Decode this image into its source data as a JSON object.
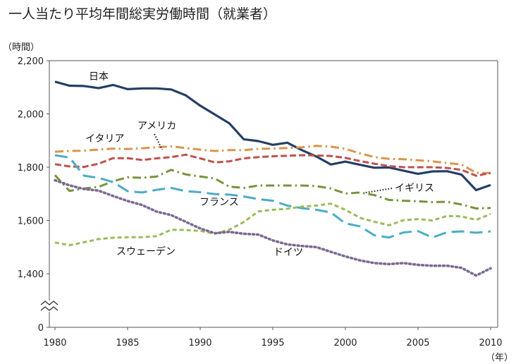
{
  "chart_data": {
    "type": "line",
    "title": "一人当たり平均年間総実労働時間（就業者）",
    "ylabel": "（時間）",
    "xlabel": "（年）",
    "ylim": [
      0,
      2200
    ],
    "axis_break": [
      0,
      1400
    ],
    "y_ticks": [
      0,
      1400,
      1600,
      1800,
      2000,
      2200
    ],
    "y_tick_labels": [
      "0",
      "1,400",
      "1,600",
      "1,800",
      "2,000",
      "2,200"
    ],
    "x_ticks": [
      1980,
      1985,
      1990,
      1995,
      2000,
      2005,
      2010
    ],
    "x_tick_labels": [
      "1980",
      "1985",
      "1990",
      "1995",
      "2000",
      "2005",
      "2010"
    ],
    "grid": false,
    "legend": "inline",
    "x": [
      1980,
      1981,
      1982,
      1983,
      1984,
      1985,
      1986,
      1987,
      1988,
      1989,
      1990,
      1991,
      1992,
      1993,
      1994,
      1995,
      1996,
      1997,
      1998,
      1999,
      2000,
      2001,
      2002,
      2003,
      2004,
      2005,
      2006,
      2007,
      2008,
      2009,
      2010
    ],
    "series": [
      {
        "name": "日本",
        "color": "#243f66",
        "style": "solid",
        "values": [
          2121,
          2106,
          2105,
          2097,
          2109,
          2093,
          2096,
          2096,
          2092,
          2070,
          2031,
          1998,
          1965,
          1905,
          1898,
          1884,
          1892,
          1864,
          1840,
          1810,
          1821,
          1809,
          1798,
          1799,
          1787,
          1775,
          1784,
          1785,
          1772,
          1714,
          1733
        ]
      },
      {
        "name": "アメリカ",
        "color": "#d9954a",
        "style": "dashdot",
        "values": [
          1858,
          1861,
          1862,
          1866,
          1870,
          1868,
          1871,
          1875,
          1878,
          1872,
          1866,
          1861,
          1864,
          1864,
          1869,
          1870,
          1872,
          1875,
          1880,
          1877,
          1869,
          1852,
          1838,
          1831,
          1830,
          1826,
          1822,
          1815,
          1810,
          1779,
          1778
        ]
      },
      {
        "name": "イタリア",
        "color": "#c0504d",
        "style": "dashed",
        "values": [
          1811,
          1803,
          1801,
          1813,
          1834,
          1834,
          1827,
          1833,
          1838,
          1847,
          1833,
          1818,
          1822,
          1833,
          1838,
          1841,
          1843,
          1845,
          1844,
          1842,
          1835,
          1823,
          1813,
          1804,
          1800,
          1800,
          1800,
          1797,
          1790,
          1768,
          1778
        ]
      },
      {
        "name": "イギリス",
        "color": "#77933c",
        "style": "dashdot",
        "values": [
          1770,
          1711,
          1720,
          1726,
          1747,
          1762,
          1760,
          1765,
          1790,
          1773,
          1765,
          1758,
          1727,
          1722,
          1731,
          1731,
          1731,
          1731,
          1729,
          1720,
          1701,
          1705,
          1695,
          1677,
          1674,
          1672,
          1669,
          1670,
          1660,
          1645,
          1647
        ]
      },
      {
        "name": "フランス",
        "color": "#4bacc6",
        "style": "longdash",
        "values": [
          1845,
          1836,
          1768,
          1760,
          1744,
          1710,
          1705,
          1715,
          1722,
          1710,
          1706,
          1699,
          1697,
          1690,
          1680,
          1674,
          1656,
          1646,
          1640,
          1630,
          1589,
          1578,
          1544,
          1536,
          1555,
          1560,
          1536,
          1556,
          1559,
          1554,
          1559
        ]
      },
      {
        "name": "スウェーデン",
        "color": "#9bbb59",
        "style": "shortdash",
        "values": [
          1517,
          1507,
          1518,
          1530,
          1535,
          1537,
          1537,
          1541,
          1565,
          1564,
          1561,
          1550,
          1565,
          1594,
          1634,
          1640,
          1644,
          1652,
          1656,
          1663,
          1640,
          1610,
          1595,
          1582,
          1601,
          1605,
          1600,
          1617,
          1615,
          1602,
          1624
        ]
      },
      {
        "name": "ドイツ",
        "color": "#7b6a93",
        "style": "dotted",
        "values": [
          1751,
          1732,
          1718,
          1712,
          1692,
          1673,
          1658,
          1633,
          1620,
          1595,
          1570,
          1552,
          1557,
          1550,
          1547,
          1525,
          1510,
          1504,
          1500,
          1482,
          1465,
          1450,
          1440,
          1436,
          1440,
          1433,
          1430,
          1430,
          1422,
          1393,
          1420
        ]
      }
    ]
  }
}
